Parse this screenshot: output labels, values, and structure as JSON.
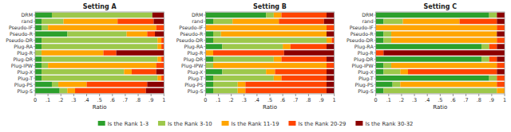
{
  "chart_data": [
    {
      "type": "bar",
      "orientation": "horizontal",
      "stacked": true,
      "title": "Setting A",
      "xlabel": "Ratio",
      "categories": [
        "DRM",
        "rand",
        "Pseudo-IF",
        "Pseudo-R",
        "Pseudo-DR",
        "Plug-RA",
        "Plug-R",
        "Plug-DR",
        "Plug-IPW",
        "Plug-X",
        "Plug-T",
        "Plug-PS",
        "Plug-S"
      ],
      "xlim": [
        0,
        1
      ],
      "xticks": [
        0,
        {
          "value": 0.1,
          "label": ".1"
        },
        {
          "value": 0.2,
          "label": ".2"
        },
        {
          "value": 0.3,
          "label": ".3"
        },
        {
          "value": 0.4,
          "label": ".4"
        },
        {
          "value": 0.5,
          "label": ".5"
        },
        {
          "value": 0.6,
          "label": ".6"
        },
        {
          "value": 0.7,
          "label": ".7"
        },
        {
          "value": 0.8,
          "label": ".8"
        },
        {
          "value": 0.9,
          "label": ".9"
        },
        1
      ],
      "series": [
        {
          "name": "Is the Rank 1-3",
          "color": "#2ca02c",
          "values": [
            0.13,
            0.05,
            0.05,
            0.25,
            0.05,
            0.05,
            0.0,
            0.05,
            0.05,
            0.05,
            0.05,
            0.13,
            0.19
          ]
        },
        {
          "name": "Is the Rank 3-10",
          "color": "#9dc84b",
          "values": [
            0.78,
            0.17,
            0.05,
            0.46,
            0.9,
            0.9,
            0.05,
            0.9,
            0.05,
            0.64,
            0.9,
            0.05,
            0.06
          ]
        },
        {
          "name": "Is the Rank 11-19",
          "color": "#ffa500",
          "values": [
            0.0,
            0.42,
            0.84,
            0.16,
            0.03,
            0.03,
            0.48,
            0.03,
            0.84,
            0.06,
            0.03,
            0.22,
            0.06
          ]
        },
        {
          "name": "Is the Rank 20-29",
          "color": "#ff4500",
          "values": [
            0.0,
            0.28,
            0.06,
            0.06,
            0.02,
            0.02,
            0.1,
            0.02,
            0.06,
            0.19,
            0.02,
            0.47,
            0.55
          ]
        },
        {
          "name": "Is the Rank 30-32",
          "color": "#8b0000",
          "values": [
            0.09,
            0.08,
            0.0,
            0.07,
            0.0,
            0.0,
            0.37,
            0.0,
            0.0,
            0.06,
            0.0,
            0.13,
            0.14
          ]
        }
      ]
    },
    {
      "type": "bar",
      "orientation": "horizontal",
      "stacked": true,
      "title": "Setting B",
      "xlabel": "Ratio",
      "categories": [
        "DRM",
        "rand",
        "Pseudo-IF",
        "Pseudo-R",
        "Pseudo-DR",
        "Plug-RA",
        "Plug-R",
        "Plug-DR",
        "Plug-IPW",
        "Plug-X",
        "Plug-T",
        "Plug-PS",
        "Plug-S"
      ],
      "xlim": [
        0,
        1
      ],
      "xticks": [
        0,
        {
          "value": 0.1,
          "label": ".1"
        },
        {
          "value": 0.2,
          "label": ".2"
        },
        {
          "value": 0.3,
          "label": ".3"
        },
        {
          "value": 0.4,
          "label": ".4"
        },
        {
          "value": 0.5,
          "label": ".5"
        },
        {
          "value": 0.6,
          "label": ".6"
        },
        {
          "value": 0.7,
          "label": ".7"
        },
        {
          "value": 0.8,
          "label": ".8"
        },
        {
          "value": 0.9,
          "label": ".9"
        },
        1
      ],
      "series": [
        {
          "name": "Is the Rank 1-3",
          "color": "#2ca02c",
          "values": [
            0.47,
            0.06,
            0.0,
            0.06,
            0.06,
            0.13,
            0.0,
            0.06,
            0.0,
            0.13,
            0.06,
            0.06,
            0.06
          ]
        },
        {
          "name": "Is the Rank 3-10",
          "color": "#9dc84b",
          "values": [
            0.06,
            0.15,
            0.0,
            0.06,
            0.88,
            0.47,
            0.0,
            0.47,
            0.06,
            0.34,
            0.47,
            0.19,
            0.19
          ]
        },
        {
          "name": "Is the Rank 11-19",
          "color": "#ffa500",
          "values": [
            0.06,
            0.36,
            0.94,
            0.82,
            0.04,
            0.06,
            0.06,
            0.06,
            0.88,
            0.07,
            0.06,
            0.06,
            0.06
          ]
        },
        {
          "name": "Is the Rank 20-29",
          "color": "#ff4500",
          "values": [
            0.35,
            0.35,
            0.06,
            0.0,
            0.02,
            0.28,
            0.55,
            0.35,
            0.06,
            0.4,
            0.35,
            0.63,
            0.63
          ]
        },
        {
          "name": "Is the Rank 30-32",
          "color": "#8b0000",
          "values": [
            0.06,
            0.08,
            0.0,
            0.06,
            0.0,
            0.06,
            0.39,
            0.06,
            0.0,
            0.06,
            0.06,
            0.06,
            0.06
          ]
        }
      ]
    },
    {
      "type": "bar",
      "orientation": "horizontal",
      "stacked": true,
      "title": "Setting C",
      "xlabel": "Ratio",
      "categories": [
        "DRM",
        "rand",
        "Pseudo-IF",
        "Pseudo-R",
        "Pseudo-DR",
        "Plug-RA",
        "Plug-R",
        "Plug-DR",
        "Plug-IPW",
        "Plug-X",
        "Plug-T",
        "Plug-PS",
        "Plug-S"
      ],
      "xlim": [
        0,
        1
      ],
      "xticks": [
        0,
        {
          "value": 0.1,
          "label": ".1"
        },
        {
          "value": 0.2,
          "label": ".2"
        },
        {
          "value": 0.3,
          "label": ".3"
        },
        {
          "value": 0.4,
          "label": ".4"
        },
        {
          "value": 0.5,
          "label": ".5"
        },
        {
          "value": 0.6,
          "label": ".6"
        },
        {
          "value": 0.7,
          "label": ".7"
        },
        {
          "value": 0.8,
          "label": ".8"
        },
        {
          "value": 0.9,
          "label": ".9"
        },
        1
      ],
      "series": [
        {
          "name": "Is the Rank 1-3",
          "color": "#2ca02c",
          "values": [
            0.88,
            0.06,
            0.0,
            0.06,
            0.06,
            0.82,
            0.0,
            0.82,
            0.06,
            0.06,
            0.88,
            0.13,
            0.06
          ]
        },
        {
          "name": "Is the Rank 3-10",
          "color": "#9dc84b",
          "values": [
            0.06,
            0.15,
            0.0,
            0.06,
            0.06,
            0.06,
            0.0,
            0.06,
            0.06,
            0.13,
            0.06,
            0.06,
            0.88
          ]
        },
        {
          "name": "Is the Rank 11-19",
          "color": "#ffa500",
          "values": [
            0.0,
            0.44,
            0.94,
            0.82,
            0.82,
            0.0,
            0.0,
            0.0,
            0.82,
            0.06,
            0.0,
            0.75,
            0.06
          ]
        },
        {
          "name": "Is the Rank 20-29",
          "color": "#ff4500",
          "values": [
            0.0,
            0.29,
            0.06,
            0.0,
            0.06,
            0.06,
            0.06,
            0.06,
            0.06,
            0.69,
            0.06,
            0.06,
            0.0
          ]
        },
        {
          "name": "Is the Rank 30-32",
          "color": "#8b0000",
          "values": [
            0.06,
            0.06,
            0.0,
            0.06,
            0.0,
            0.06,
            0.94,
            0.06,
            0.0,
            0.06,
            0.0,
            0.0,
            0.0
          ]
        }
      ]
    }
  ]
}
